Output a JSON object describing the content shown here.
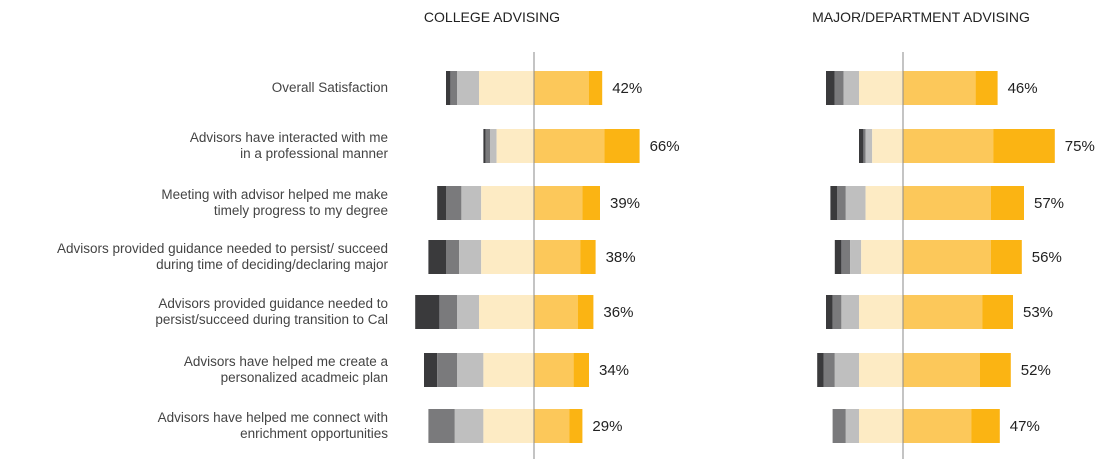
{
  "chart_data": {
    "type": "bar",
    "subtype": "diverging-stacked",
    "categories": [
      "Overall Satisfaction",
      "Advisors have interacted with me\nin a professional manner",
      "Meeting with advisor helped me make\ntimely progress to my degree",
      "Advisors provided guidance needed to persist/ succeed\nduring time of deciding/declaring major",
      "Advisors provided guidance needed to\npersist/succeed during transition to Cal",
      "Advisors have helped me create a\npersonalized acadmeic plan",
      "Advisors have helped me connect with\nenrichment opportunities"
    ],
    "segment_colors": [
      "#3a3a3c",
      "#7a7a7c",
      "#bfbfbf",
      "#fdebc4",
      "#fcc85a",
      "#fbb413"
    ],
    "legend": "none",
    "grid": false,
    "panels": [
      {
        "title": "COLLEGE ADVISING",
        "percent_labels": [
          "42%",
          "66%",
          "39%",
          "38%",
          "36%",
          "34%",
          "29%"
        ],
        "series": [
          {
            "values": [
              2,
              1,
              4,
              8,
              11,
              6,
              0
            ]
          },
          {
            "values": [
              3,
              2,
              7,
              6,
              8,
              9,
              12
            ]
          },
          {
            "values": [
              10,
              3,
              9,
              10,
              10,
              12,
              13
            ]
          },
          {
            "values": [
              25,
              17,
              24,
              24,
              25,
              23,
              23
            ]
          },
          {
            "values": [
              25,
              32,
              22,
              21,
              20,
              18,
              16
            ]
          },
          {
            "values": [
              6,
              16,
              8,
              7,
              7,
              7,
              6
            ]
          }
        ]
      },
      {
        "title": "MAJOR/DEPARTMENT ADVISING",
        "percent_labels": [
          "46%",
          "75%",
          "57%",
          "56%",
          "53%",
          "52%",
          "47%"
        ],
        "series": [
          {
            "values": [
              4,
              2,
              3,
              3,
              3,
              3,
              0
            ]
          },
          {
            "values": [
              4,
              1,
              4,
              4,
              4,
              5,
              6
            ]
          },
          {
            "values": [
              7,
              3,
              9,
              5,
              8,
              11,
              6
            ]
          },
          {
            "values": [
              20,
              14,
              17,
              19,
              20,
              20,
              20
            ]
          },
          {
            "values": [
              33,
              41,
              40,
              40,
              36,
              35,
              31
            ]
          },
          {
            "values": [
              10,
              28,
              15,
              14,
              14,
              14,
              13
            ]
          }
        ]
      }
    ]
  }
}
